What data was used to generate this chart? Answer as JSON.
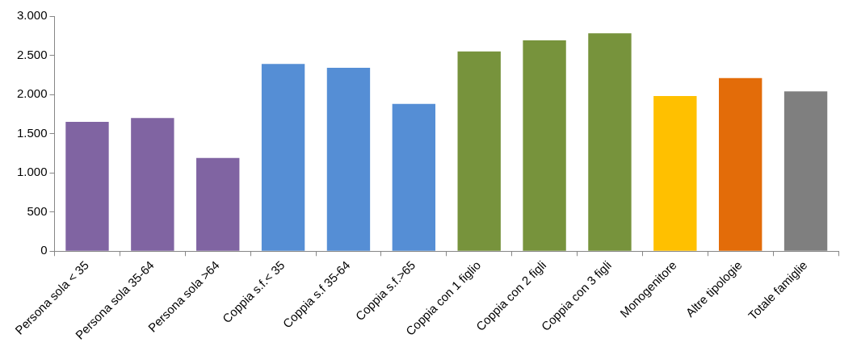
{
  "chart_data": {
    "type": "bar",
    "categories": [
      "Persona sola < 35",
      "Persona sola 35-64",
      "Persona sola >64",
      "Coppia s.f.< 35",
      "Coppia s.f 35-64",
      "Coppia s.f.>65",
      "Coppia con 1 figlio",
      "Coppia con 2 figli",
      "Coppia con 3 figli",
      "Monogenitore",
      "Altre tipologie",
      "Totale famiglie"
    ],
    "values": [
      1650,
      1700,
      1190,
      2390,
      2340,
      1880,
      2550,
      2690,
      2780,
      1980,
      2210,
      2040
    ],
    "colors": [
      "#8064a2",
      "#8064a2",
      "#8064a2",
      "#558ed5",
      "#558ed5",
      "#558ed5",
      "#77933c",
      "#77933c",
      "#77933c",
      "#ffc000",
      "#e36c09",
      "#7f7f7f"
    ],
    "ylim": [
      0,
      3000
    ],
    "yticks": [
      0,
      {
        "value": 500,
        "label": "500"
      },
      {
        "value": 1000,
        "label": "1.000"
      },
      {
        "value": 1500,
        "label": "1.500"
      },
      {
        "value": 2000,
        "label": "2.000"
      },
      {
        "value": 2500,
        "label": "2.500"
      },
      {
        "value": 3000,
        "label": "3.000"
      }
    ],
    "grid": false,
    "legend": false
  }
}
